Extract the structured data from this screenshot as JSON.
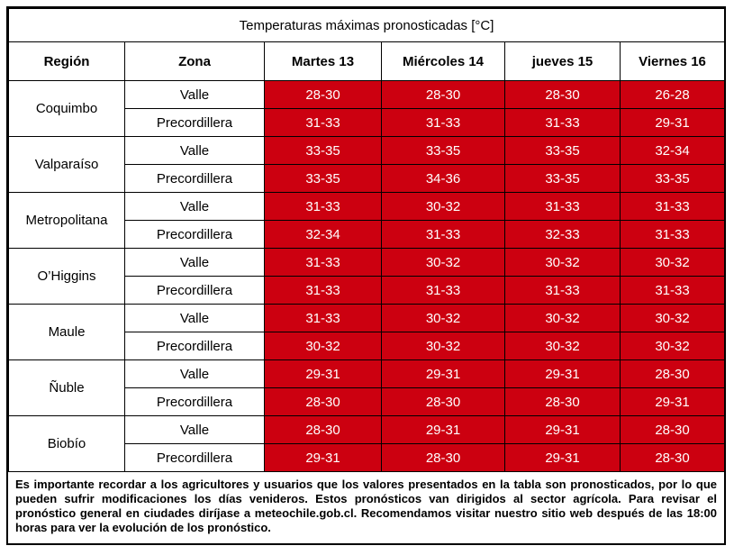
{
  "title": "Temperaturas máximas pronosticadas [°C]",
  "headers": {
    "region": "Región",
    "zona": "Zona",
    "days": [
      "Martes 13",
      "Miércoles 14",
      "jueves 15",
      "Viernes 16"
    ]
  },
  "regions": [
    {
      "name": "Coquimbo",
      "rows": [
        {
          "zona": "Valle",
          "values": [
            "28-30",
            "28-30",
            "28-30",
            "26-28"
          ]
        },
        {
          "zona": "Precordillera",
          "values": [
            "31-33",
            "31-33",
            "31-33",
            "29-31"
          ]
        }
      ]
    },
    {
      "name": "Valparaíso",
      "rows": [
        {
          "zona": "Valle",
          "values": [
            "33-35",
            "33-35",
            "33-35",
            "32-34"
          ]
        },
        {
          "zona": "Precordillera",
          "values": [
            "33-35",
            "34-36",
            "33-35",
            "33-35"
          ]
        }
      ]
    },
    {
      "name": "Metropolitana",
      "rows": [
        {
          "zona": "Valle",
          "values": [
            "31-33",
            "30-32",
            "31-33",
            "31-33"
          ]
        },
        {
          "zona": "Precordillera",
          "values": [
            "32-34",
            "31-33",
            "32-33",
            "31-33"
          ]
        }
      ]
    },
    {
      "name": "O’Higgins",
      "rows": [
        {
          "zona": "Valle",
          "values": [
            "31-33",
            "30-32",
            "30-32",
            "30-32"
          ]
        },
        {
          "zona": "Precordillera",
          "values": [
            "31-33",
            "31-33",
            "31-33",
            "31-33"
          ]
        }
      ]
    },
    {
      "name": "Maule",
      "rows": [
        {
          "zona": "Valle",
          "values": [
            "31-33",
            "30-32",
            "30-32",
            "30-32"
          ]
        },
        {
          "zona": "Precordillera",
          "values": [
            "30-32",
            "30-32",
            "30-32",
            "30-32"
          ]
        }
      ]
    },
    {
      "name": "Ñuble",
      "rows": [
        {
          "zona": "Valle",
          "values": [
            "29-31",
            "29-31",
            "29-31",
            "28-30"
          ]
        },
        {
          "zona": "Precordillera",
          "values": [
            "28-30",
            "28-30",
            "28-30",
            "29-31"
          ]
        }
      ]
    },
    {
      "name": "Biobío",
      "rows": [
        {
          "zona": "Valle",
          "values": [
            "28-30",
            "29-31",
            "29-31",
            "28-30"
          ]
        },
        {
          "zona": "Precordillera",
          "values": [
            "29-31",
            "28-30",
            "29-31",
            "28-30"
          ]
        }
      ]
    }
  ],
  "note": "Es importante recordar a los agricultores y usuarios que los valores presentados en la tabla son pronosticados, por lo que pueden sufrir modificaciones los días venideros. Estos pronósticos van dirigidos al sector agrícola. Para revisar el pronóstico general en ciudades diríjase a meteochile.gob.cl. Recomendamos visitar nuestro sitio web después de las 18:00 horas para ver la evolución de los pronóstico.",
  "colors": {
    "value_cell": "#cc0010",
    "value_text": "#ffffff",
    "border": "#000000"
  }
}
